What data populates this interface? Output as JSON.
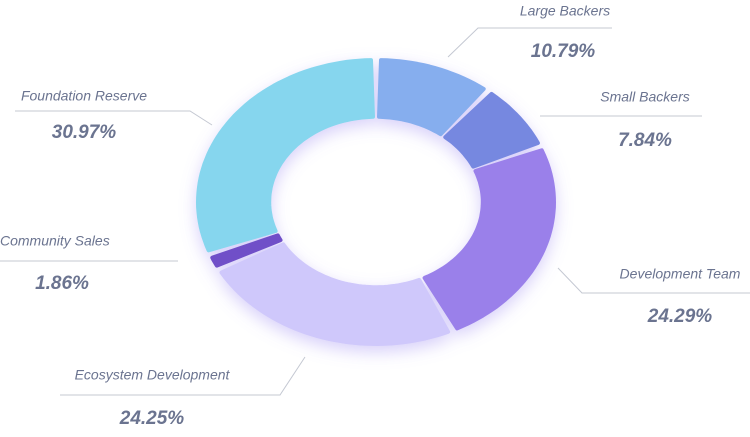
{
  "chart_data": {
    "type": "pie",
    "categories": [
      "Large Backers",
      "Small Backers",
      "Development Team",
      "Ecosystem Development",
      "Community Sales",
      "Foundation Reserve"
    ],
    "values": [
      10.79,
      7.84,
      24.29,
      24.25,
      1.86,
      30.97
    ],
    "value_labels": [
      "10.79%",
      "7.84%",
      "24.29%",
      "24.25%",
      "1.86%",
      "30.97%"
    ],
    "colors": [
      "#86aeee",
      "#7688e0",
      "#9a80ea",
      "#cfc8fb",
      "#6f50c8",
      "#86d6ee"
    ]
  }
}
